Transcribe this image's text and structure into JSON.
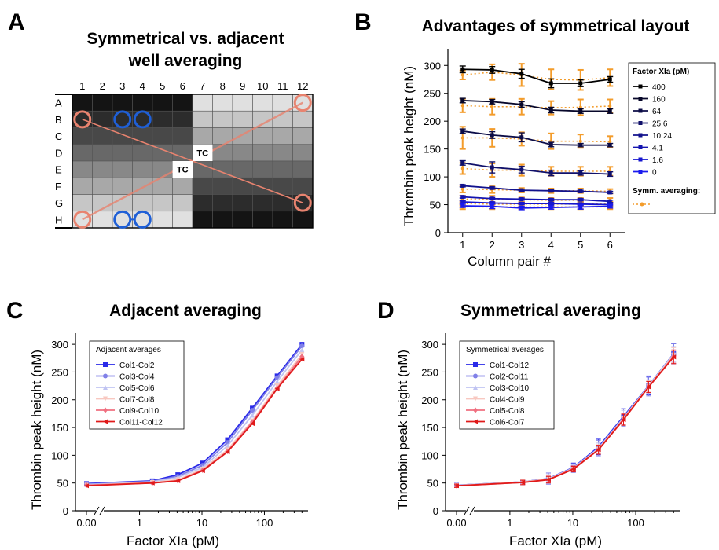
{
  "panels": {
    "A": {
      "letter": "A",
      "title_line1": "Symmetrical vs. adjacent",
      "title_line2": "well averaging"
    },
    "B": {
      "letter": "B"
    },
    "C": {
      "letter": "C"
    },
    "D": {
      "letter": "D"
    }
  },
  "plate": {
    "columns": [
      "1",
      "2",
      "3",
      "4",
      "5",
      "6",
      "7",
      "8",
      "9",
      "10",
      "11",
      "12"
    ],
    "rows": [
      "A",
      "B",
      "C",
      "D",
      "E",
      "F",
      "G",
      "H"
    ],
    "tc_label": "TC",
    "symmetric_color": "#e8836f",
    "adjacent_color": "#1f5fd6"
  },
  "chart_data": [
    {
      "id": "B",
      "type": "line",
      "title": "Advantages of symmetrical layout",
      "xlabel": "Column pair #",
      "ylabel": "Thrombin peak height (nM)",
      "x": [
        1,
        2,
        3,
        4,
        5,
        6
      ],
      "xlim": [
        0.5,
        6.5
      ],
      "ylim": [
        0,
        330
      ],
      "yticks": [
        0,
        50,
        100,
        150,
        200,
        250,
        300
      ],
      "legend_title": "Factor XIa (pM)",
      "legend_extra": "Symm. averaging:",
      "legend_position": "right",
      "series": [
        {
          "name": "400",
          "color": "#000000",
          "values": [
            293,
            292,
            285,
            268,
            268,
            275
          ],
          "err": [
            6,
            6,
            8,
            8,
            6,
            5
          ]
        },
        {
          "name": "160",
          "color": "#07072a",
          "values": [
            237,
            235,
            230,
            220,
            218,
            218
          ],
          "err": [
            4,
            4,
            5,
            5,
            4,
            4
          ]
        },
        {
          "name": "64",
          "color": "#0c0c47",
          "values": [
            182,
            175,
            171,
            158,
            157,
            157
          ],
          "err": [
            4,
            6,
            8,
            4,
            3,
            3
          ]
        },
        {
          "name": "25.6",
          "color": "#10106a",
          "values": [
            125,
            117,
            113,
            107,
            107,
            105
          ],
          "err": [
            4,
            10,
            6,
            5,
            4,
            4
          ]
        },
        {
          "name": "10.24",
          "color": "#12128d",
          "values": [
            84,
            80,
            76,
            75,
            74,
            72
          ],
          "err": [
            2,
            2,
            2,
            2,
            2,
            2
          ]
        },
        {
          "name": "4.1",
          "color": "#1414b0",
          "values": [
            64,
            61,
            60,
            59,
            59,
            56
          ],
          "err": [
            2,
            2,
            2,
            2,
            2,
            2
          ]
        },
        {
          "name": "1.6",
          "color": "#1616cf",
          "values": [
            55,
            53,
            52,
            52,
            51,
            50
          ],
          "err": [
            2,
            2,
            2,
            2,
            2,
            2
          ]
        },
        {
          "name": "0",
          "color": "#1a1aee",
          "values": [
            48,
            47,
            44,
            45,
            46,
            47
          ],
          "err": [
            3,
            4,
            3,
            3,
            4,
            3
          ]
        }
      ],
      "symmetric_series": [
        {
          "values": [
            283,
            288,
            283,
            275,
            274,
            278
          ],
          "err": [
            8,
            14,
            20,
            18,
            18,
            15
          ]
        },
        {
          "values": [
            228,
            226,
            226,
            224,
            225,
            227
          ],
          "err": [
            12,
            14,
            14,
            12,
            14,
            12
          ]
        },
        {
          "values": [
            170,
            170,
            168,
            164,
            164,
            163
          ],
          "err": [
            20,
            16,
            12,
            14,
            12,
            10
          ]
        },
        {
          "values": [
            115,
            112,
            112,
            110,
            110,
            110
          ],
          "err": [
            10,
            12,
            10,
            8,
            8,
            8
          ]
        },
        {
          "values": [
            78,
            77,
            76,
            75,
            75,
            74
          ],
          "err": [
            6,
            6,
            4,
            4,
            4,
            4
          ]
        },
        {
          "values": [
            60,
            60,
            59,
            58,
            58,
            58
          ],
          "err": [
            6,
            6,
            4,
            4,
            4,
            4
          ]
        },
        {
          "values": [
            52,
            51,
            51,
            51,
            51,
            51
          ],
          "err": [
            4,
            4,
            4,
            4,
            4,
            4
          ]
        },
        {
          "values": [
            46,
            46,
            46,
            46,
            46,
            46
          ],
          "err": [
            4,
            4,
            4,
            4,
            4,
            4
          ]
        }
      ],
      "symmetric_color": "#f39c2b"
    },
    {
      "id": "C",
      "type": "line",
      "title": "Adjacent averaging",
      "xlabel": "Factor XIa (pM)",
      "ylabel": "Thrombin peak height (nM)",
      "x_scale": "log",
      "x": [
        0,
        1.6,
        4.1,
        10.24,
        25.6,
        64,
        160,
        400
      ],
      "xticks": [
        "0.00",
        "1",
        "10",
        "100"
      ],
      "ylim": [
        0,
        320
      ],
      "yticks": [
        0,
        50,
        100,
        150,
        200,
        250,
        300
      ],
      "legend_title": "Adjacent averages",
      "legend_position": "top-left",
      "series": [
        {
          "name": "Col1-Col2",
          "color": "#2a2ae8",
          "marker": "square",
          "values": [
            49,
            54,
            65,
            86,
            128,
            185,
            243,
            300
          ]
        },
        {
          "name": "Col3-Col4",
          "color": "#8080e8",
          "marker": "circle",
          "values": [
            48,
            53,
            62,
            82,
            123,
            181,
            240,
            297
          ]
        },
        {
          "name": "Col5-Col6",
          "color": "#c0c4f2",
          "marker": "triangle-up",
          "values": [
            47,
            52,
            60,
            78,
            117,
            172,
            233,
            290
          ]
        },
        {
          "name": "Col7-Col8",
          "color": "#f8c8c0",
          "marker": "triangle-down",
          "values": [
            46,
            51,
            56,
            75,
            110,
            162,
            225,
            282
          ]
        },
        {
          "name": "Col9-Col10",
          "color": "#f07080",
          "marker": "diamond",
          "values": [
            46,
            50,
            54,
            73,
            107,
            160,
            221,
            278
          ]
        },
        {
          "name": "Col11-Col12",
          "color": "#e01a1a",
          "marker": "triangle-left",
          "values": [
            45,
            50,
            54,
            72,
            106,
            157,
            220,
            273
          ]
        }
      ]
    },
    {
      "id": "D",
      "type": "line",
      "title": "Symmetrical averaging",
      "xlabel": "Factor XIa (pM)",
      "ylabel": "Thrombin peak height (nM)",
      "x_scale": "log",
      "x": [
        0,
        1.6,
        4.1,
        10.24,
        25.6,
        64,
        160,
        400
      ],
      "xticks": [
        "0.00",
        "1",
        "10",
        "100"
      ],
      "ylim": [
        0,
        320
      ],
      "yticks": [
        0,
        50,
        100,
        150,
        200,
        250,
        300
      ],
      "legend_title": "Symmetrical averages",
      "legend_position": "top-left",
      "series": [
        {
          "name": "Col1-Col12",
          "color": "#2a2ae8",
          "marker": "square",
          "values": [
            46,
            52,
            58,
            78,
            115,
            170,
            225,
            283
          ],
          "err": [
            3,
            5,
            10,
            8,
            14,
            14,
            16,
            18
          ]
        },
        {
          "name": "Col2-Col11",
          "color": "#8080e8",
          "marker": "circle",
          "values": [
            46,
            52,
            58,
            77,
            113,
            168,
            225,
            283
          ],
          "err": [
            3,
            5,
            10,
            8,
            14,
            16,
            18,
            18
          ]
        },
        {
          "name": "Col3-Col10",
          "color": "#c0c4f2",
          "marker": "triangle-up",
          "values": [
            46,
            52,
            57,
            77,
            112,
            167,
            224,
            282
          ],
          "err": [
            3,
            4,
            8,
            6,
            10,
            14,
            12,
            14
          ]
        },
        {
          "name": "Col4-Col9",
          "color": "#f8c8c0",
          "marker": "triangle-down",
          "values": [
            45,
            52,
            57,
            76,
            111,
            166,
            224,
            280
          ],
          "err": [
            3,
            4,
            6,
            5,
            8,
            10,
            10,
            14
          ]
        },
        {
          "name": "Col5-Col8",
          "color": "#f07080",
          "marker": "diamond",
          "values": [
            45,
            51,
            56,
            76,
            110,
            165,
            223,
            278
          ],
          "err": [
            3,
            4,
            6,
            5,
            8,
            10,
            10,
            12
          ]
        },
        {
          "name": "Col6-Col7",
          "color": "#e01a1a",
          "marker": "triangle-left",
          "values": [
            45,
            51,
            56,
            75,
            110,
            164,
            223,
            277
          ],
          "err": [
            3,
            4,
            6,
            5,
            8,
            10,
            10,
            12
          ]
        }
      ]
    }
  ]
}
